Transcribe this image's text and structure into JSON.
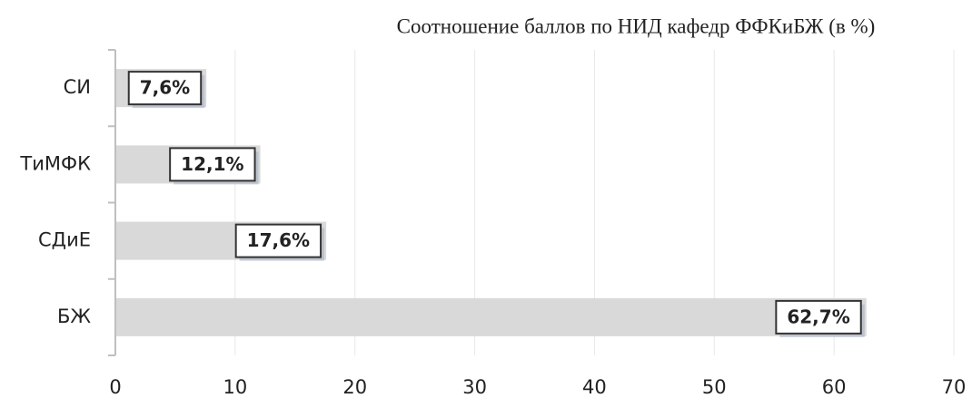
{
  "chart_data": {
    "type": "barh",
    "title": "Соотношение баллов по НИД кафедр ФФКиБЖ (в %)",
    "categories": [
      "СИ",
      "ТиМФК",
      "СДиЕ",
      "БЖ"
    ],
    "values": [
      7.6,
      12.1,
      17.6,
      62.7
    ],
    "value_labels": [
      "7,6%",
      "12,1%",
      "17,6%",
      "62,7%"
    ],
    "color": "#d9d9d9",
    "xlim": [
      0,
      70
    ],
    "xticks": [
      0,
      10,
      20,
      30,
      40,
      50,
      60,
      70
    ],
    "grid": true
  }
}
